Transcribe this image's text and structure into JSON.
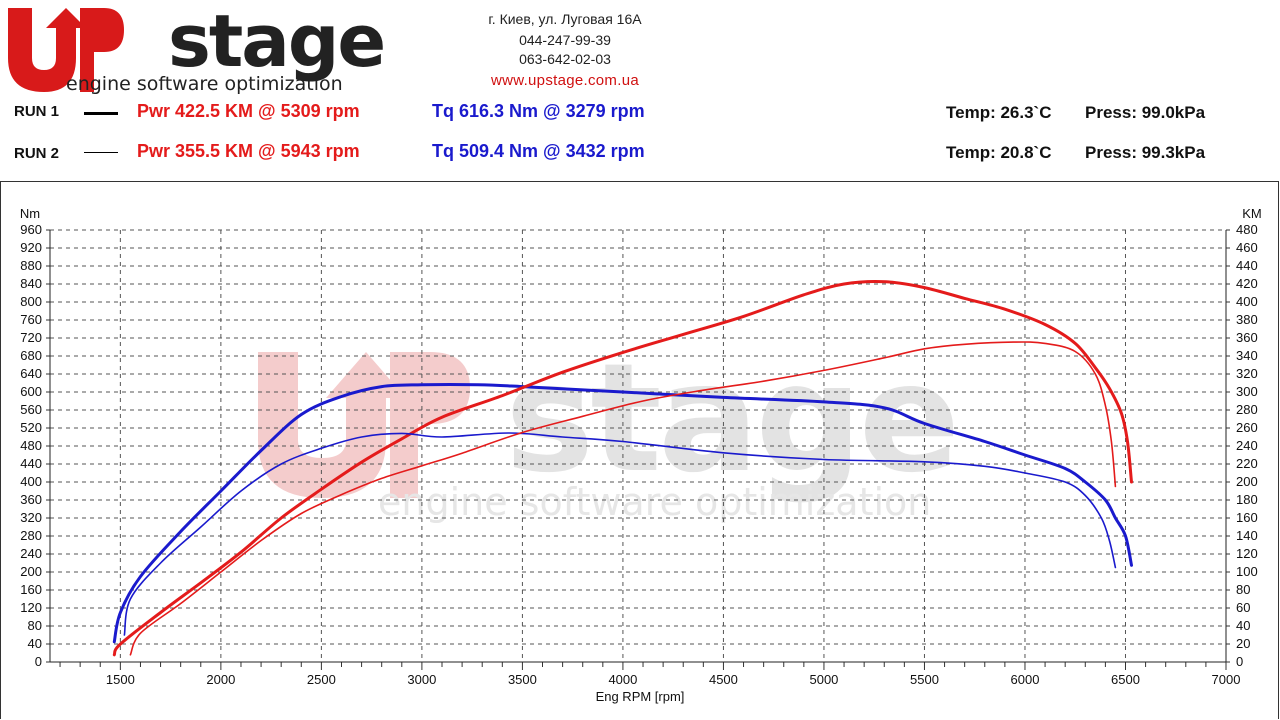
{
  "header": {
    "logo_text": "Upstage",
    "logo_tagline": "engine software optimization",
    "address": "г. Киев, ул. Луговая 16А",
    "phone_1": "044-247-99-39",
    "phone_2": "063-642-02-03",
    "website": "www.upstage.com.ua"
  },
  "runs": [
    {
      "label": "RUN 1",
      "power": "Pwr  422.5 KM @ 5309 rpm",
      "torque": "Tq 616.3 Nm @ 3279 rpm",
      "temp": "Temp: 26.3`C",
      "press": "Press: 99.0kPa"
    },
    {
      "label": "RUN 2",
      "power": "Pwr  355.5 KM @ 5943 rpm",
      "torque": "Tq 509.4 Nm @ 3432 rpm",
      "temp": "Temp: 20.8`C",
      "press": "Press: 99.3kPa"
    }
  ],
  "colors": {
    "power": "#e41b1b",
    "torque": "#1a1acd",
    "watermark_red": "#f2c4c4",
    "watermark_grey": "#dcdcdc"
  },
  "chart_data": {
    "type": "line",
    "xlabel": "Eng RPM [rpm]",
    "ylabel_left": "Nm",
    "ylabel_right": "KM",
    "xlim": [
      1150,
      7000
    ],
    "ylim_left": [
      0,
      960
    ],
    "ylim_right": [
      0,
      480
    ],
    "x_ticks": [
      1500,
      2000,
      2500,
      3000,
      3500,
      4000,
      4500,
      5000,
      5500,
      6000,
      6500,
      7000
    ],
    "y_ticks_left": [
      0,
      40,
      80,
      120,
      160,
      200,
      240,
      280,
      320,
      360,
      400,
      440,
      480,
      520,
      560,
      600,
      640,
      680,
      720,
      760,
      800,
      840,
      880,
      920,
      960
    ],
    "y_ticks_right": [
      0,
      20,
      40,
      60,
      80,
      100,
      120,
      140,
      160,
      180,
      200,
      220,
      240,
      260,
      280,
      300,
      320,
      340,
      360,
      380,
      400,
      420,
      440,
      460,
      480
    ],
    "grid": true,
    "series": [
      {
        "name": "RUN 1",
        "axis": "left",
        "color": "torque",
        "x": [
          1470,
          1500,
          1600,
          1800,
          2000,
          2200,
          2400,
          2600,
          2800,
          3000,
          3279,
          3500,
          4000,
          4500,
          5000,
          5300,
          5500,
          5800,
          6000,
          6200,
          6300,
          6400,
          6450,
          6500,
          6530
        ],
        "y": [
          45,
          110,
          190,
          290,
          380,
          470,
          550,
          590,
          612,
          616,
          616,
          612,
          600,
          588,
          578,
          565,
          530,
          490,
          460,
          430,
          400,
          360,
          320,
          280,
          215
        ]
      },
      {
        "name": "RUN 1",
        "axis": "right",
        "color": "power",
        "x": [
          1470,
          1500,
          1700,
          1900,
          2100,
          2300,
          2500,
          2700,
          2900,
          3100,
          3400,
          3700,
          4000,
          4300,
          4600,
          4900,
          5100,
          5309,
          5500,
          5700,
          5900,
          6100,
          6250,
          6350,
          6420,
          6480,
          6510,
          6530
        ],
        "y": [
          8,
          20,
          55,
          88,
          122,
          160,
          192,
          222,
          248,
          272,
          296,
          322,
          344,
          364,
          384,
          408,
          420,
          422.5,
          416,
          404,
          392,
          375,
          354,
          327,
          304,
          276,
          245,
          200
        ]
      },
      {
        "name": "RUN 2",
        "axis": "left",
        "color": "torque",
        "x": [
          1520,
          1550,
          1700,
          1900,
          2100,
          2300,
          2500,
          2700,
          2900,
          3100,
          3432,
          3700,
          4000,
          4500,
          5000,
          5500,
          5800,
          6000,
          6200,
          6300,
          6380,
          6420,
          6450
        ],
        "y": [
          60,
          140,
          220,
          300,
          380,
          440,
          475,
          500,
          508,
          500,
          509,
          500,
          490,
          465,
          450,
          445,
          435,
          420,
          400,
          370,
          320,
          270,
          210
        ]
      },
      {
        "name": "RUN 2",
        "axis": "right",
        "color": "power",
        "x": [
          1550,
          1600,
          1800,
          2000,
          2200,
          2400,
          2600,
          2800,
          3000,
          3200,
          3500,
          3800,
          4100,
          4400,
          4700,
          5000,
          5300,
          5500,
          5700,
          5943,
          6100,
          6250,
          6350,
          6400,
          6430,
          6450
        ],
        "y": [
          8,
          32,
          65,
          100,
          135,
          165,
          186,
          204,
          218,
          232,
          255,
          273,
          290,
          302,
          312,
          324,
          338,
          348,
          353,
          355.5,
          354,
          345,
          320,
          285,
          245,
          195
        ]
      }
    ]
  }
}
